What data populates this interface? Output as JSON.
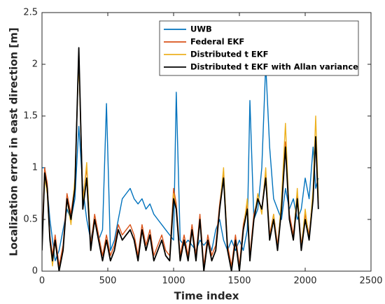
{
  "chart_data": {
    "type": "line",
    "xlabel": "Time index",
    "ylabel": "Localization error in east direction [m]",
    "x": [
      0,
      20,
      40,
      60,
      80,
      100,
      130,
      160,
      190,
      220,
      250,
      280,
      310,
      340,
      370,
      400,
      430,
      460,
      490,
      520,
      550,
      580,
      610,
      640,
      670,
      700,
      730,
      760,
      790,
      820,
      850,
      880,
      910,
      940,
      970,
      1000,
      1020,
      1050,
      1080,
      1110,
      1140,
      1170,
      1200,
      1230,
      1260,
      1290,
      1320,
      1350,
      1380,
      1410,
      1440,
      1470,
      1500,
      1530,
      1560,
      1580,
      1610,
      1640,
      1670,
      1700,
      1730,
      1760,
      1790,
      1820,
      1850,
      1880,
      1910,
      1940,
      1970,
      2000,
      2030,
      2060,
      2080,
      2100
    ],
    "series": [
      {
        "name": "UWB",
        "color": "#0072bd",
        "values": [
          1.0,
          1.0,
          0.8,
          0.5,
          0.3,
          0.1,
          0.2,
          0.4,
          0.6,
          0.5,
          0.7,
          1.4,
          0.8,
          0.5,
          0.3,
          0.5,
          0.3,
          0.4,
          1.62,
          0.2,
          0.3,
          0.5,
          0.7,
          0.75,
          0.8,
          0.7,
          0.65,
          0.7,
          0.6,
          0.65,
          0.55,
          0.5,
          0.45,
          0.4,
          0.35,
          0.3,
          1.73,
          0.3,
          0.25,
          0.3,
          0.25,
          0.2,
          0.3,
          0.25,
          0.3,
          0.2,
          0.4,
          0.5,
          0.3,
          0.2,
          0.3,
          0.2,
          0.3,
          0.2,
          0.4,
          1.65,
          0.5,
          0.6,
          1.0,
          2.0,
          1.2,
          0.7,
          0.6,
          0.5,
          0.8,
          0.6,
          0.7,
          0.5,
          0.6,
          0.9,
          0.7,
          1.2,
          0.8,
          0.9
        ]
      },
      {
        "name": "Federal EKF",
        "color": "#d95319",
        "values": [
          0.3,
          1.0,
          0.85,
          0.35,
          0.15,
          0.35,
          0.05,
          0.25,
          0.75,
          0.55,
          0.85,
          2.1,
          0.7,
          1.0,
          0.25,
          0.55,
          0.35,
          0.15,
          0.35,
          0.15,
          0.25,
          0.45,
          0.35,
          0.4,
          0.45,
          0.35,
          0.15,
          0.45,
          0.25,
          0.4,
          0.15,
          0.25,
          0.35,
          0.2,
          0.15,
          0.8,
          0.65,
          0.15,
          0.35,
          0.15,
          0.45,
          0.15,
          0.55,
          0.05,
          0.35,
          0.15,
          0.25,
          0.65,
          0.95,
          0.25,
          0.05,
          0.35,
          0.05,
          0.45,
          0.65,
          0.15,
          0.55,
          0.7,
          0.6,
          0.95,
          0.35,
          0.55,
          0.25,
          0.65,
          1.25,
          0.55,
          0.35,
          0.75,
          0.25,
          0.55,
          0.35,
          0.75,
          1.3,
          0.65
        ]
      },
      {
        "name": "Distributed t EKF",
        "color": "#edb120",
        "values": [
          0.25,
          0.9,
          0.75,
          0.3,
          0.05,
          0.3,
          0.0,
          0.2,
          0.7,
          0.45,
          0.9,
          2.05,
          0.65,
          1.05,
          0.2,
          0.5,
          0.3,
          0.1,
          0.3,
          0.1,
          0.2,
          0.4,
          0.3,
          0.35,
          0.4,
          0.3,
          0.1,
          0.4,
          0.2,
          0.35,
          0.1,
          0.2,
          0.3,
          0.15,
          0.1,
          0.75,
          0.6,
          0.1,
          0.3,
          0.1,
          0.4,
          0.1,
          0.5,
          0.0,
          0.3,
          0.1,
          0.2,
          0.6,
          1.0,
          0.2,
          0.0,
          0.3,
          0.0,
          0.4,
          0.7,
          0.1,
          0.5,
          0.75,
          0.55,
          1.0,
          0.3,
          0.55,
          0.2,
          0.7,
          1.43,
          0.5,
          0.3,
          0.8,
          0.2,
          0.6,
          0.3,
          0.8,
          1.5,
          0.7
        ]
      },
      {
        "name": "Distributed t EKF with Allan variance",
        "color": "#000000",
        "values": [
          0.2,
          0.95,
          0.8,
          0.3,
          0.1,
          0.3,
          0.0,
          0.2,
          0.7,
          0.5,
          0.8,
          2.16,
          0.6,
          0.9,
          0.2,
          0.5,
          0.3,
          0.1,
          0.3,
          0.1,
          0.2,
          0.4,
          0.3,
          0.35,
          0.4,
          0.3,
          0.1,
          0.4,
          0.2,
          0.35,
          0.1,
          0.2,
          0.3,
          0.15,
          0.1,
          0.7,
          0.6,
          0.1,
          0.3,
          0.1,
          0.4,
          0.1,
          0.5,
          0.0,
          0.3,
          0.1,
          0.2,
          0.6,
          0.9,
          0.2,
          0.0,
          0.3,
          0.0,
          0.4,
          0.6,
          0.1,
          0.5,
          0.7,
          0.6,
          0.9,
          0.3,
          0.5,
          0.2,
          0.6,
          1.2,
          0.5,
          0.3,
          0.7,
          0.2,
          0.5,
          0.3,
          0.7,
          1.3,
          0.6
        ]
      }
    ],
    "xlim": [
      0,
      2500
    ],
    "xticks": [
      0,
      500,
      1000,
      1500,
      2000,
      2500
    ],
    "ylim": [
      0,
      2.5
    ],
    "yticks": [
      0,
      0.5,
      1,
      1.5,
      2,
      2.5
    ],
    "legend": "upper right"
  }
}
